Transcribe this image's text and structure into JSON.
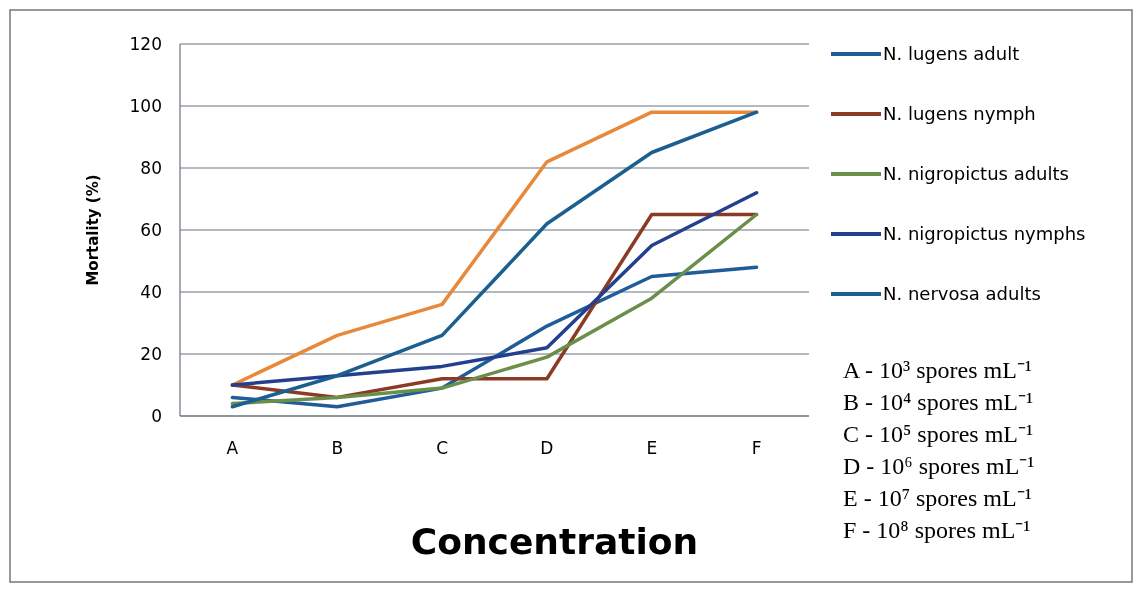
{
  "chart_data": {
    "type": "line",
    "xlabel": "Concentration",
    "ylabel": "Mortality (%)",
    "categories": [
      "A",
      "B",
      "C",
      "D",
      "E",
      "F"
    ],
    "ylim": [
      0,
      120
    ],
    "yticks": [
      0,
      20,
      40,
      60,
      80,
      100,
      120
    ],
    "grid": "y",
    "legend": "right",
    "marker": "none",
    "line_style": "solid",
    "series": [
      {
        "color": "#e8893a",
        "values": [
          10,
          26,
          36,
          82,
          98,
          98
        ]
      },
      {
        "name": "N. lugens adult",
        "color": "#1f5c99",
        "values": [
          6,
          3,
          9,
          29,
          45,
          48
        ]
      },
      {
        "name": "N. lugens nymph",
        "color": "#8b3a24",
        "values": [
          10,
          6,
          12,
          12,
          65,
          65
        ]
      },
      {
        "name": "N. nigropictus adults",
        "color": "#6a8f4a",
        "values": [
          4,
          6,
          9,
          19,
          38,
          65
        ]
      },
      {
        "name": "N. nigropictus nymphs",
        "color": "#23408e",
        "values": [
          10,
          13,
          16,
          22,
          55,
          72
        ]
      },
      {
        "name": "N. nervosa adults",
        "color": "#1a5f8f",
        "values": [
          3,
          13,
          26,
          62,
          85,
          98
        ]
      }
    ],
    "annotations": [
      "A - 10³ spores mL⁻¹",
      "B - 10⁴ spores mL⁻¹",
      "C - 10⁵ spores mL⁻¹",
      "D - 10⁶ spores mL⁻¹",
      "E - 10⁷ spores mL⁻¹",
      "F - 10⁸ spores mL⁻¹"
    ]
  }
}
